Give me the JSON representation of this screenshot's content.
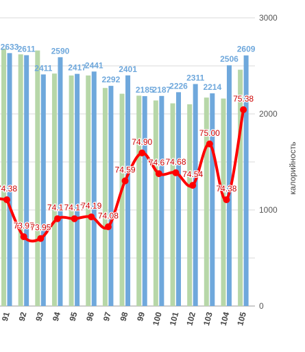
{
  "chart_data": {
    "type": "bar",
    "categories": [
      "91",
      "92",
      "93",
      "94",
      "95",
      "96",
      "97",
      "98",
      "99",
      "100",
      "101",
      "102",
      "103",
      "104",
      "105"
    ],
    "ylabel_right": "калорийность",
    "y_right_range": [
      0,
      3000
    ],
    "y_right_ticks": [
      "0",
      "1000",
      "2000",
      "3000"
    ],
    "grid": true,
    "series": [
      {
        "kind": "bar",
        "color": "#b7d7a8",
        "values": [
          2680,
          2620,
          2660,
          2420,
          2400,
          2400,
          2270,
          2210,
          2190,
          2140,
          2110,
          2100,
          2170,
          2160,
          2460
        ]
      },
      {
        "kind": "bar",
        "color": "#6fa8dc",
        "values": [
          2633,
          2611,
          2411,
          2590,
          2417,
          2441,
          2292,
          2401,
          2185,
          2187,
          2226,
          2311,
          2214,
          2506,
          2609
        ],
        "labels": [
          "2633",
          "2611",
          "2411",
          "2590",
          "2417",
          "2441",
          "2292",
          "2401",
          "2185",
          "2187",
          "2226",
          "2311",
          "2214",
          "2506",
          "2609"
        ]
      },
      {
        "kind": "line",
        "color": "#ff0000",
        "values": [
          74.38,
          73.97,
          73.95,
          74.17,
          74.17,
          74.19,
          74.08,
          74.59,
          74.9,
          74.67,
          74.68,
          74.54,
          75.0,
          74.38,
          75.38
        ],
        "labels": [
          "74.38",
          "73.97",
          "73.95",
          "74.17",
          "74.17",
          "74.19",
          "74.08",
          "74.59",
          "74.90",
          "74.67",
          "74.68",
          "74.54",
          "75.00",
          "74.38",
          "75.38"
        ],
        "axis_min": 73.2,
        "axis_max": 76.4
      }
    ]
  }
}
